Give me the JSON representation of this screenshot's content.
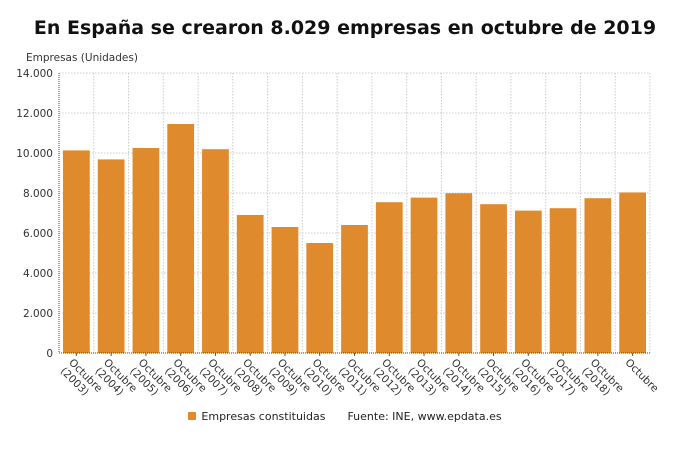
{
  "chart_data": {
    "type": "bar",
    "title": "En España se crearon 8.029 empresas en octubre de 2019",
    "ylabel": "Empresas (Unidades)",
    "xlabel": "",
    "ylim": [
      0,
      14000
    ],
    "yticks": [
      "0",
      "2.000",
      "4.000",
      "6.000",
      "8.000",
      "10.000",
      "12.000",
      "14.000"
    ],
    "grid": true,
    "legend_position": "bottom",
    "categories": [
      "Octubre (2003)",
      "Octubre (2004)",
      "Octubre (2005)",
      "Octubre (2006)",
      "Octubre (2007)",
      "Octubre (2008)",
      "Octubre (2009)",
      "Octubre (2010)",
      "Octubre (2011)",
      "Octubre (2012)",
      "Octubre (2013)",
      "Octubre (2014)",
      "Octubre (2015)",
      "Octubre (2016)",
      "Octubre (2017)",
      "Octubre (2018)",
      "Octubre"
    ],
    "series": [
      {
        "name": "Empresas constituidas",
        "color": "#e08a2e",
        "values": [
          10130,
          9680,
          10250,
          11450,
          10190,
          6900,
          6300,
          5500,
          6400,
          7540,
          7770,
          7990,
          7440,
          7120,
          7240,
          7740,
          8029
        ]
      }
    ],
    "source": "Fuente: INE, www.epdata.es"
  }
}
